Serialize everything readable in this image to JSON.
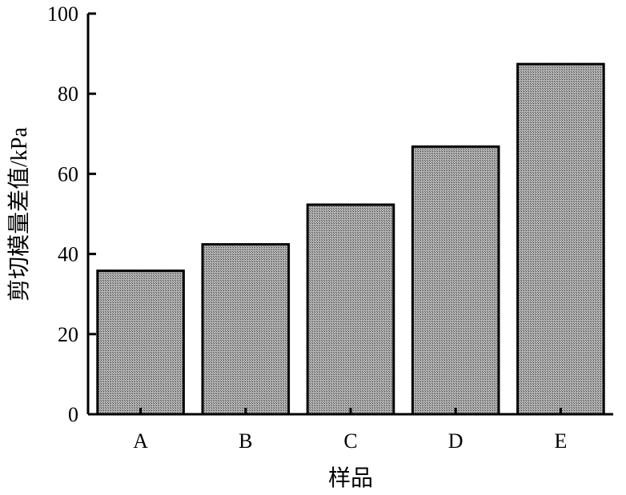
{
  "chart_data": {
    "type": "bar",
    "title": "",
    "xlabel": "样品",
    "ylabel": "剪切模量差值/kPa",
    "categories": [
      "A",
      "B",
      "C",
      "D",
      "E"
    ],
    "values": [
      35.8,
      42.4,
      52.3,
      66.8,
      87.4
    ],
    "ylim": [
      0,
      100
    ],
    "yticks": [
      0,
      20,
      40,
      60,
      80,
      100
    ],
    "grid": false,
    "legend": "none",
    "bar_fill": "#a9a9a9",
    "bar_stroke": "#000000"
  }
}
